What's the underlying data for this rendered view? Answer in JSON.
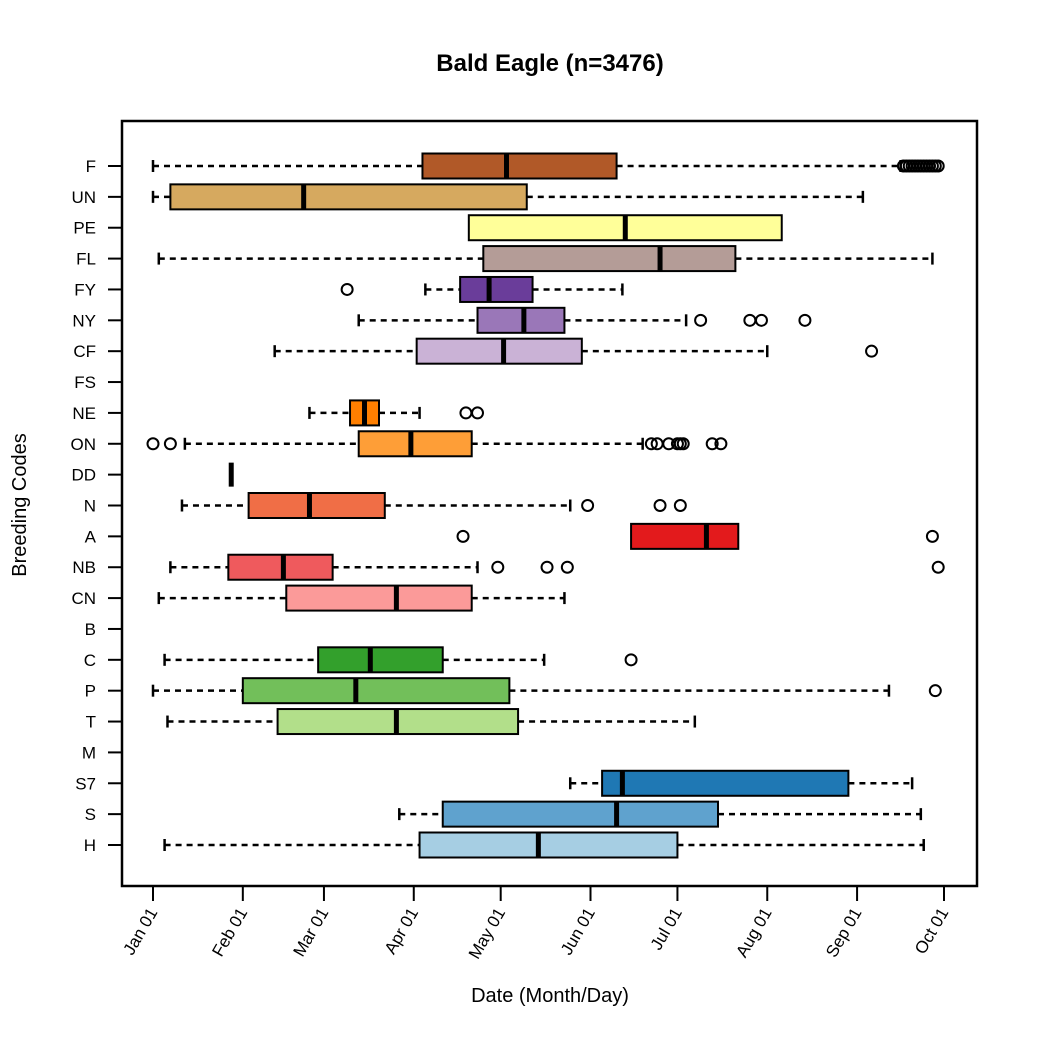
{
  "chart_data": {
    "type": "boxplot",
    "orientation": "horizontal",
    "title": "Bald Eagle (n=3476)",
    "xlabel": "Date (Month/Day)",
    "ylabel": "Breeding Codes",
    "xlim": [
      "01-01",
      "10-01"
    ],
    "x_ticks": [
      {
        "value": "01-01",
        "label": "Jan 01"
      },
      {
        "value": "02-01",
        "label": "Feb 01"
      },
      {
        "value": "03-01",
        "label": "Mar 01"
      },
      {
        "value": "04-01",
        "label": "Apr 01"
      },
      {
        "value": "05-01",
        "label": "May 01"
      },
      {
        "value": "06-01",
        "label": "Jun 01"
      },
      {
        "value": "07-01",
        "label": "Jul 01"
      },
      {
        "value": "08-01",
        "label": "Aug 01"
      },
      {
        "value": "09-01",
        "label": "Sep 01"
      },
      {
        "value": "10-01",
        "label": "Oct 01"
      }
    ],
    "grid": false,
    "categories": [
      "F",
      "UN",
      "PE",
      "FL",
      "FY",
      "NY",
      "CF",
      "FS",
      "NE",
      "ON",
      "DD",
      "N",
      "A",
      "NB",
      "CN",
      "B",
      "C",
      "P",
      "T",
      "M",
      "S7",
      "S",
      "H"
    ],
    "boxes": [
      {
        "code": "F",
        "color": "#B15928",
        "low": "01-01",
        "q1": "04-04",
        "median": "05-03",
        "q3": "06-10",
        "high": "09-16",
        "outliers": [
          "09-17",
          "09-18",
          "09-19",
          "09-20",
          "09-21",
          "09-22",
          "09-23",
          "09-24",
          "09-25",
          "09-26",
          "09-27",
          "09-28",
          "09-29"
        ]
      },
      {
        "code": "UN",
        "color": "#D6A95F",
        "low": "01-01",
        "q1": "01-07",
        "median": "02-22",
        "q3": "05-10",
        "high": "09-03",
        "outliers": []
      },
      {
        "code": "PE",
        "color": "#FFFF99",
        "low": "04-20",
        "q1": "04-20",
        "median": "06-13",
        "q3": "08-06",
        "high": "08-06",
        "outliers": []
      },
      {
        "code": "FL",
        "color": "#B49C97",
        "low": "01-03",
        "q1": "04-25",
        "median": "06-25",
        "q3": "07-21",
        "high": "09-27",
        "outliers": []
      },
      {
        "code": "FY",
        "color": "#6A3D9A",
        "low": "04-05",
        "q1": "04-17",
        "median": "04-27",
        "q3": "05-12",
        "high": "06-12",
        "outliers": [
          "03-09"
        ]
      },
      {
        "code": "NY",
        "color": "#9A77B8",
        "low": "03-13",
        "q1": "04-23",
        "median": "05-09",
        "q3": "05-23",
        "high": "07-04",
        "outliers": [
          "07-09",
          "07-26",
          "07-30",
          "08-14"
        ]
      },
      {
        "code": "CF",
        "color": "#CAB2D6",
        "low": "02-12",
        "q1": "04-02",
        "median": "05-02",
        "q3": "05-29",
        "high": "08-01",
        "outliers": [
          "09-06"
        ]
      },
      {
        "code": "FS",
        "color": null
      },
      {
        "code": "NE",
        "color": "#FF7F00",
        "low": "02-24",
        "q1": "03-10",
        "median": "03-15",
        "q3": "03-20",
        "high": "04-03",
        "outliers": [
          "04-19",
          "04-23"
        ]
      },
      {
        "code": "ON",
        "color": "#FE9E37",
        "low": "01-12",
        "q1": "03-13",
        "median": "03-31",
        "q3": "04-21",
        "high": "06-19",
        "outliers": [
          "01-01",
          "01-07",
          "06-22",
          "06-24",
          "06-28",
          "07-01",
          "07-02",
          "07-03",
          "07-13",
          "07-16"
        ]
      },
      {
        "code": "DD",
        "color": "#F47F55",
        "low": "01-28",
        "q1": "01-28",
        "median": "01-28",
        "q3": "01-28",
        "high": "01-28",
        "outliers": []
      },
      {
        "code": "N",
        "color": "#F06E46",
        "low": "01-11",
        "q1": "02-03",
        "median": "02-24",
        "q3": "03-22",
        "high": "05-25",
        "outliers": [
          "05-31",
          "06-25",
          "07-02"
        ]
      },
      {
        "code": "A",
        "color": "#E31A1C",
        "low": "06-15",
        "q1": "06-15",
        "median": "07-11",
        "q3": "07-22",
        "high": "07-22",
        "outliers": [
          "04-18",
          "09-27"
        ]
      },
      {
        "code": "NB",
        "color": "#EF5A5D",
        "low": "01-07",
        "q1": "01-27",
        "median": "02-15",
        "q3": "03-04",
        "high": "04-23",
        "outliers": [
          "04-30",
          "05-17",
          "05-24",
          "09-29"
        ]
      },
      {
        "code": "CN",
        "color": "#FB9A99",
        "low": "01-03",
        "q1": "02-16",
        "median": "03-26",
        "q3": "04-21",
        "high": "05-23",
        "outliers": []
      },
      {
        "code": "B",
        "color": null
      },
      {
        "code": "C",
        "color": "#33A02C",
        "low": "01-05",
        "q1": "02-27",
        "median": "03-17",
        "q3": "04-11",
        "high": "05-16",
        "outliers": [
          "06-15"
        ]
      },
      {
        "code": "P",
        "color": "#72BF5A",
        "low": "01-01",
        "q1": "02-01",
        "median": "03-12",
        "q3": "05-04",
        "high": "09-12",
        "outliers": [
          "09-28"
        ]
      },
      {
        "code": "T",
        "color": "#B2DF8A",
        "low": "01-06",
        "q1": "02-13",
        "median": "03-26",
        "q3": "05-07",
        "high": "07-07",
        "outliers": []
      },
      {
        "code": "M",
        "color": null
      },
      {
        "code": "S7",
        "color": "#1F78B4",
        "low": "05-25",
        "q1": "06-05",
        "median": "06-12",
        "q3": "08-29",
        "high": "09-20",
        "outliers": []
      },
      {
        "code": "S",
        "color": "#5FA2CE",
        "low": "03-27",
        "q1": "04-11",
        "median": "06-10",
        "q3": "07-15",
        "high": "09-23",
        "outliers": []
      },
      {
        "code": "H",
        "color": "#A6CEE3",
        "low": "01-05",
        "q1": "04-03",
        "median": "05-14",
        "q3": "07-01",
        "high": "09-24",
        "outliers": []
      }
    ]
  }
}
